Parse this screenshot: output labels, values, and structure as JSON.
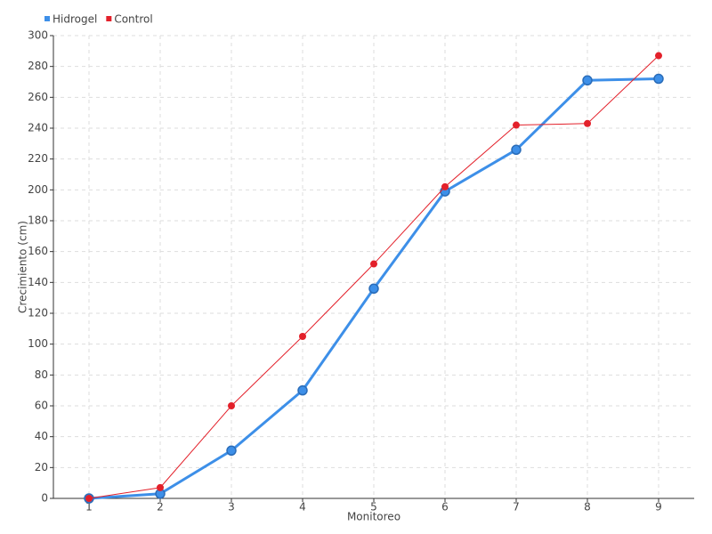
{
  "chart_data": {
    "type": "line",
    "x_label": "Monitoreo",
    "y_label": "Crecimiento (cm)",
    "x": [
      1,
      2,
      3,
      4,
      5,
      6,
      7,
      8,
      9
    ],
    "series": [
      {
        "name": "Hidrogel",
        "color": "#3d8fe8",
        "values": [
          0,
          3,
          31,
          70,
          136,
          199,
          226,
          271,
          272
        ]
      },
      {
        "name": "Control",
        "color": "#e3202a",
        "values": [
          0,
          7,
          60,
          105,
          152,
          202,
          242,
          243,
          287
        ]
      }
    ],
    "xlim": [
      0.5,
      9.5
    ],
    "xticks": [
      1,
      2,
      3,
      4,
      5,
      6,
      7,
      8,
      9
    ],
    "ylim": [
      0,
      300
    ],
    "yticks": [
      0,
      20,
      40,
      60,
      80,
      100,
      120,
      140,
      160,
      180,
      200,
      220,
      240,
      260,
      280,
      300
    ],
    "grid": true,
    "legend": "top-left"
  }
}
